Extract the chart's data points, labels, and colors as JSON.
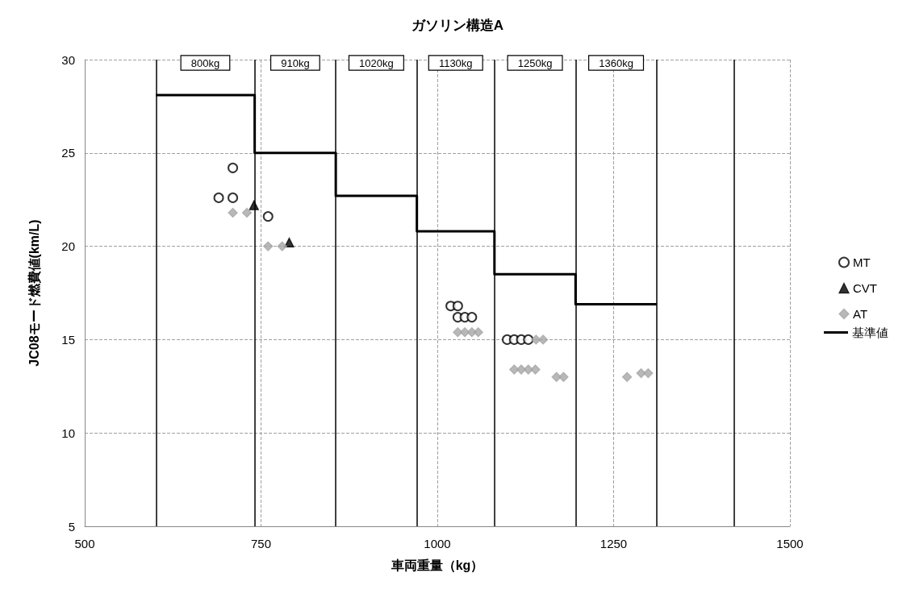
{
  "chart_data": {
    "type": "scatter",
    "title": "ガソリン構造A",
    "xlabel": "車両重量（kg）",
    "ylabel": "JC08モード燃費値(km/L)",
    "xlim": [
      500,
      1500
    ],
    "xticks": [
      500,
      750,
      1000,
      1250,
      1500
    ],
    "ylim": [
      5,
      30
    ],
    "yticks": [
      5,
      10,
      15,
      20,
      25,
      30
    ],
    "grid": true,
    "legend": "right",
    "series": [
      {
        "name": "MT",
        "marker": "circle",
        "color": "#000000",
        "x": [
          690,
          710,
          710,
          760,
          1019,
          1029,
          1029,
          1039,
          1049,
          1099,
          1109,
          1119,
          1129
        ],
        "values": [
          22.6,
          24.2,
          22.6,
          21.6,
          16.8,
          16.8,
          16.2,
          16.2,
          16.2,
          15.0,
          15.0,
          15.0,
          15.0
        ]
      },
      {
        "name": "CVT",
        "marker": "triangle",
        "color": "#000000",
        "x": [
          740,
          790
        ],
        "values": [
          22.2,
          20.2
        ]
      },
      {
        "name": "AT",
        "marker": "diamond",
        "color": "#a6a6a6",
        "x": [
          710,
          730,
          760,
          780,
          1029,
          1039,
          1049,
          1058,
          1140,
          1150,
          1109,
          1119,
          1129,
          1139,
          1169,
          1179,
          1269,
          1289,
          1299
        ],
        "values": [
          21.8,
          21.8,
          20.0,
          20.0,
          15.4,
          15.4,
          15.4,
          15.4,
          15.0,
          15.0,
          13.4,
          13.4,
          13.4,
          13.4,
          13.0,
          13.0,
          13.0,
          13.2,
          13.2
        ]
      },
      {
        "name": "基準値",
        "type": "step",
        "marker": "none",
        "color": "#000000",
        "x": [
          601,
          741,
          856,
          971,
          1081,
          1196,
          1311
        ],
        "values": [
          28.1,
          25.0,
          22.7,
          20.8,
          18.5,
          16.9,
          16.9
        ]
      }
    ],
    "ref_lines": [
      {
        "axis": "x",
        "value": 601,
        "color": "#000000"
      },
      {
        "axis": "x",
        "value": 741,
        "color": "#000000"
      },
      {
        "axis": "x",
        "value": 856,
        "color": "#000000"
      },
      {
        "axis": "x",
        "value": 971,
        "color": "#000000"
      },
      {
        "axis": "x",
        "value": 1081,
        "color": "#000000"
      },
      {
        "axis": "x",
        "value": 1196,
        "color": "#000000"
      },
      {
        "axis": "x",
        "value": 1311,
        "color": "#000000"
      },
      {
        "axis": "x",
        "value": 1421,
        "color": "#000000"
      }
    ],
    "annotations": [
      "800kg",
      "910kg",
      "1020kg",
      "1130kg",
      "1250kg",
      "1360kg"
    ]
  }
}
